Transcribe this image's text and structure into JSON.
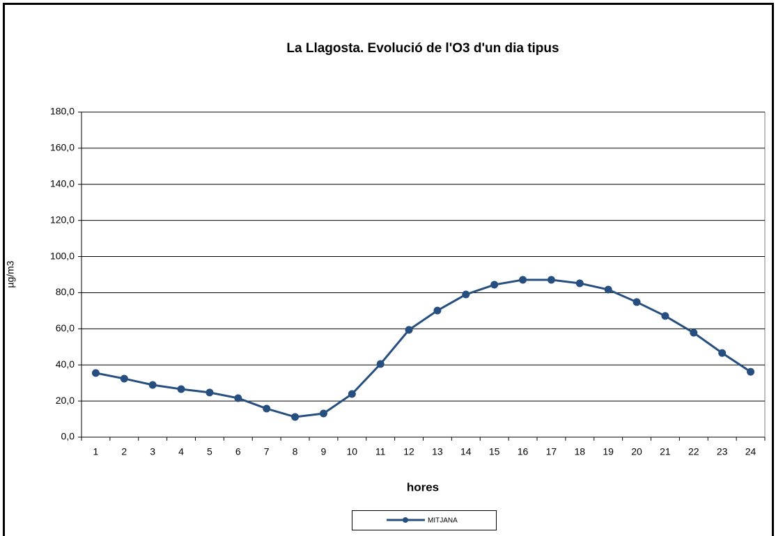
{
  "chart_data": {
    "type": "line",
    "title": "La Llagosta. Evolució de l'O3 d'un dia tipus",
    "x_label": "hores",
    "y_label": "µg/m3",
    "categories": [
      "1",
      "2",
      "3",
      "4",
      "5",
      "6",
      "7",
      "8",
      "9",
      "10",
      "11",
      "12",
      "13",
      "14",
      "15",
      "16",
      "17",
      "18",
      "19",
      "20",
      "21",
      "22",
      "23",
      "24"
    ],
    "series": [
      {
        "name": "MITJANA",
        "color": "#264f7f",
        "values": [
          35.5,
          32.4,
          28.9,
          26.6,
          24.7,
          21.6,
          15.8,
          11.2,
          13.1,
          23.9,
          40.5,
          59.4,
          70.1,
          79.0,
          84.4,
          87.1,
          87.1,
          85.2,
          81.7,
          74.8,
          67.1,
          57.8,
          46.6,
          36.2
        ]
      }
    ],
    "ylim": [
      0,
      180
    ],
    "yticks": [
      {
        "value": 0,
        "label": "0,0"
      },
      {
        "value": 20,
        "label": "20,0"
      },
      {
        "value": 40,
        "label": "40,0"
      },
      {
        "value": 60,
        "label": "60,0"
      },
      {
        "value": 80,
        "label": "80,0"
      },
      {
        "value": 100,
        "label": "100,0"
      },
      {
        "value": 120,
        "label": "120,0"
      },
      {
        "value": 140,
        "label": "140,0"
      },
      {
        "value": 160,
        "label": "160,0"
      },
      {
        "value": 180,
        "label": "180,0"
      }
    ],
    "grid": true,
    "legend": "bottom"
  }
}
